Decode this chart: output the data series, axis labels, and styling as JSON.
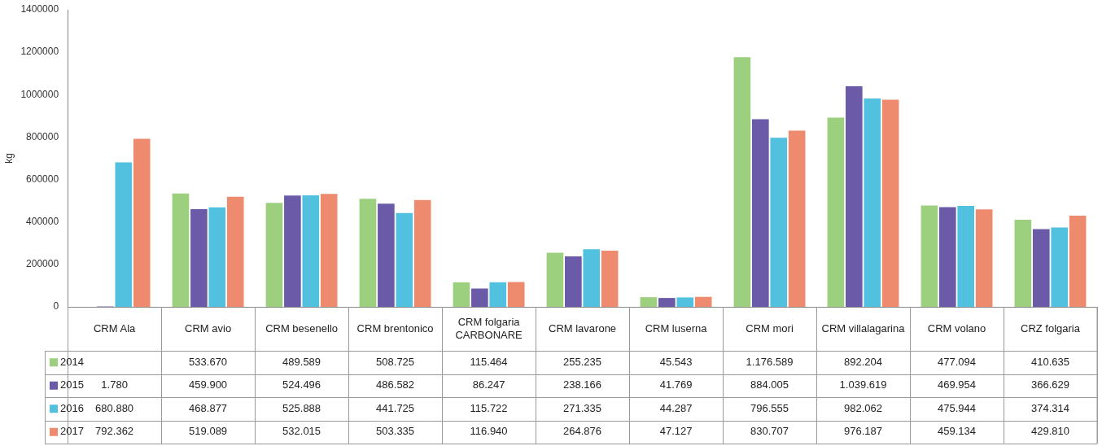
{
  "chart_data": {
    "type": "bar",
    "ylabel": "kg",
    "categories": [
      "CRM Ala",
      "CRM avio",
      "CRM besenello",
      "CRM brentonico",
      "CRM folgaria CARBONARE",
      "CRM lavarone",
      "CRM luserna",
      "CRM mori",
      "CRM villalagarina",
      "CRM volano",
      "CRZ folgaria"
    ],
    "series": [
      {
        "name": "2014",
        "color": "#9ccf7e",
        "values": [
          null,
          533670,
          489589,
          508725,
          115464,
          255235,
          45543,
          1176589,
          892204,
          477094,
          410635
        ],
        "value_labels": [
          null,
          "533.670",
          "489.589",
          "508.725",
          "115.464",
          "255.235",
          "45.543",
          "1.176.589",
          "892.204",
          "477.094",
          "410.635"
        ]
      },
      {
        "name": "2015",
        "color": "#6b5aa8",
        "values": [
          1780,
          459900,
          524496,
          486582,
          86247,
          238166,
          41769,
          884005,
          1039619,
          469954,
          366629
        ],
        "value_labels": [
          "1.780",
          "459.900",
          "524.496",
          "486.582",
          "86.247",
          "238.166",
          "41.769",
          "884.005",
          "1.039.619",
          "469.954",
          "366.629"
        ]
      },
      {
        "name": "2016",
        "color": "#52c0df",
        "values": [
          680880,
          468877,
          525888,
          441725,
          115722,
          271335,
          44287,
          796555,
          982062,
          475944,
          374314
        ],
        "value_labels": [
          "680.880",
          "468.877",
          "525.888",
          "441.725",
          "115.722",
          "271.335",
          "44.287",
          "796.555",
          "982.062",
          "475.944",
          "374.314"
        ]
      },
      {
        "name": "2017",
        "color": "#ee8b6e",
        "values": [
          792362,
          519089,
          532015,
          503335,
          116940,
          264876,
          47127,
          830707,
          976187,
          459134,
          429810
        ],
        "value_labels": [
          "792.362",
          "519.089",
          "532.015",
          "503.335",
          "116.940",
          "264.876",
          "47.127",
          "830.707",
          "976.187",
          "459.134",
          "429.810"
        ]
      }
    ],
    "ylim": [
      0,
      1400000
    ],
    "yticks": [
      0,
      200000,
      400000,
      600000,
      800000,
      1000000,
      1200000,
      1400000
    ],
    "grid": false,
    "legend": "bottom"
  }
}
